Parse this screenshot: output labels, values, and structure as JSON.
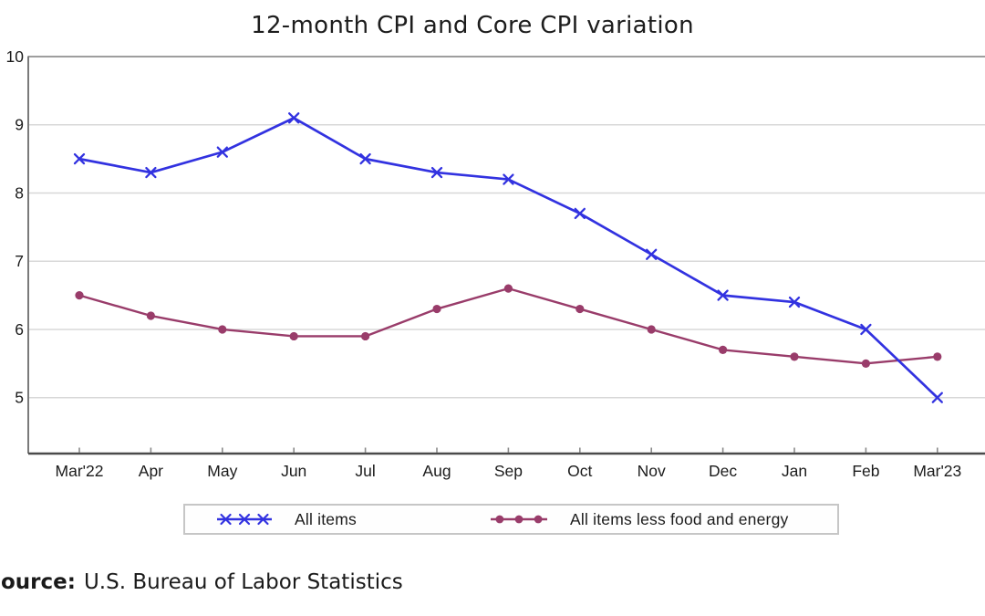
{
  "title": "12-month CPI and Core CPI variation",
  "source": {
    "label_bold": "ource:",
    "text": "U.S. Bureau of Labor Statistics"
  },
  "colors": {
    "all_items_blue": "#3232e0",
    "core_maroon": "#993c6a",
    "gridline": "#d8d8d8",
    "top_frame": "#9e9e9e",
    "left_axis": "#7a7a7a",
    "bottom_axis": "#4a4a4a",
    "tick": "#8a8a8a",
    "label_text": "#1b1b1b",
    "legend_border": "#c6c6c6"
  },
  "legend": {
    "items": [
      {
        "label": "All items",
        "marker": "x"
      },
      {
        "label": "All items less food and energy",
        "marker": "dot"
      }
    ]
  },
  "chart_data": {
    "type": "line",
    "title": "12-month CPI and Core CPI variation",
    "categories": [
      "Mar'22",
      "Apr",
      "May",
      "Jun",
      "Jul",
      "Aug",
      "Sep",
      "Oct",
      "Nov",
      "Dec",
      "Jan",
      "Feb",
      "Mar'23"
    ],
    "series": [
      {
        "name": "All items",
        "marker": "x",
        "color": "#3232e0",
        "values": [
          8.5,
          8.3,
          8.6,
          9.1,
          8.5,
          8.3,
          8.2,
          7.7,
          7.1,
          6.5,
          6.4,
          6.0,
          5.0
        ]
      },
      {
        "name": "All items less food and energy",
        "marker": "dot",
        "color": "#993c6a",
        "values": [
          6.5,
          6.2,
          6.0,
          5.9,
          5.9,
          6.3,
          6.6,
          6.3,
          6.0,
          5.7,
          5.6,
          5.5,
          5.6
        ]
      }
    ],
    "xlabel": "",
    "ylabel": "",
    "yticks": [
      5,
      6,
      7,
      8,
      9,
      10
    ],
    "ylim": [
      4.18,
      10
    ],
    "grid": true,
    "legend_position": "bottom"
  }
}
